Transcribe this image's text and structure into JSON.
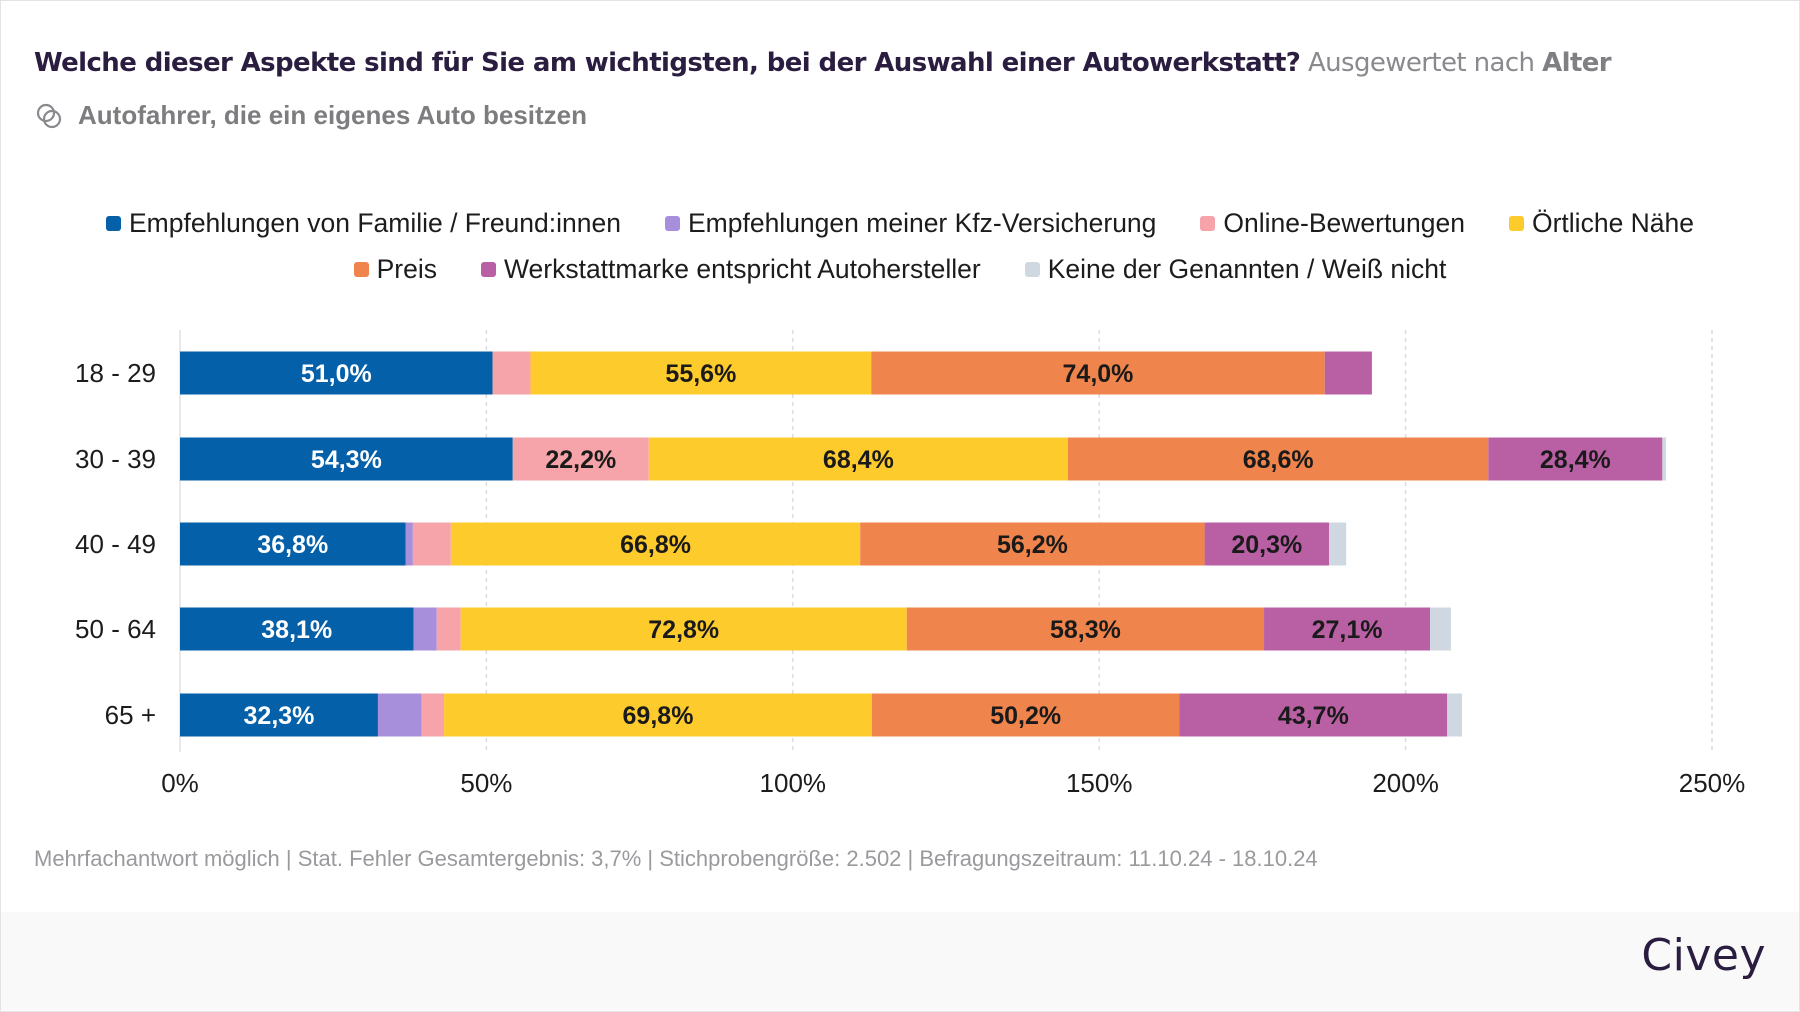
{
  "header": {
    "question": "Welche dieser Aspekte sind für Sie am wichtigsten, bei der Auswahl einer Autowerkstatt?",
    "evaluated_prefix": "Ausgewertet nach",
    "evaluated_by": "Alter",
    "population_icon": "overlapping-circles-icon",
    "population": "Autofahrer, die ein eigenes Auto besitzen"
  },
  "colors": {
    "title": "#2a1d3f",
    "grid": "#d9d9dc"
  },
  "chart_data": {
    "type": "bar",
    "orientation": "horizontal",
    "stacked": true,
    "title": "Welche dieser Aspekte sind für Sie am wichtigsten, bei der Auswahl einer Autowerkstatt?",
    "xlabel": "",
    "ylabel": "",
    "xlim": [
      0,
      250
    ],
    "x_ticks": [
      "0%",
      "50%",
      "100%",
      "150%",
      "200%",
      "250%"
    ],
    "x_tick_values": [
      0,
      50,
      100,
      150,
      200,
      250
    ],
    "grid": true,
    "legend_position": "top-center",
    "categories": [
      "18 - 29",
      "30 - 39",
      "40 - 49",
      "50 - 64",
      "65 +"
    ],
    "series": [
      {
        "name": "Empfehlungen von Familie / Freund:innen",
        "color": "#0460a9",
        "label_color": "#ffffff",
        "values": [
          51.0,
          54.3,
          36.8,
          38.1,
          32.3
        ],
        "labels": [
          "51,0%",
          "54,3%",
          "36,8%",
          "38,1%",
          "32,3%"
        ]
      },
      {
        "name": "Empfehlungen meiner Kfz-Versicherung",
        "color": "#a78fdb",
        "label_color": "#1a1a1a",
        "values": [
          0,
          0,
          1.2,
          3.8,
          7.1
        ],
        "labels": [
          "",
          "",
          "",
          "",
          ""
        ]
      },
      {
        "name": "Online-Bewertungen",
        "color": "#f6a3aa",
        "label_color": "#1a1a1a",
        "values": [
          6.2,
          22.2,
          6.2,
          3.9,
          3.7
        ],
        "labels": [
          "",
          "22,2%",
          "",
          "",
          ""
        ]
      },
      {
        "name": "Örtliche Nähe",
        "color": "#fecb2c",
        "label_color": "#1a1a1a",
        "values": [
          55.6,
          68.4,
          66.8,
          72.8,
          69.8
        ],
        "labels": [
          "55,6%",
          "68,4%",
          "66,8%",
          "72,8%",
          "69,8%"
        ]
      },
      {
        "name": "Preis",
        "color": "#ef844c",
        "label_color": "#1a1a1a",
        "values": [
          74.0,
          68.6,
          56.2,
          58.3,
          50.2
        ],
        "labels": [
          "74,0%",
          "68,6%",
          "56,2%",
          "58,3%",
          "50,2%"
        ]
      },
      {
        "name": "Werkstattmarke entspricht Autohersteller",
        "color": "#b960a5",
        "label_color": "#1a1a1a",
        "values": [
          7.7,
          28.4,
          20.3,
          27.1,
          43.7
        ],
        "labels": [
          "",
          "28,4%",
          "20,3%",
          "27,1%",
          "43,7%"
        ]
      },
      {
        "name": "Keine der Genannten / Weiß nicht",
        "color": "#cfd8e0",
        "label_color": "#1a1a1a",
        "values": [
          0,
          0.6,
          2.8,
          3.4,
          2.4
        ],
        "labels": [
          "",
          "",
          "",
          "",
          ""
        ]
      }
    ]
  },
  "legend": {
    "rows": [
      [
        0,
        1,
        2,
        3
      ],
      [
        4,
        5,
        6
      ]
    ]
  },
  "footnote": "Mehrfachantwort möglich | Stat. Fehler Gesamtergebnis: 3,7% | Stichprobengröße: 2.502 | Befragungszeitraum: 11.10.24 - 18.10.24",
  "brand": "Civey"
}
